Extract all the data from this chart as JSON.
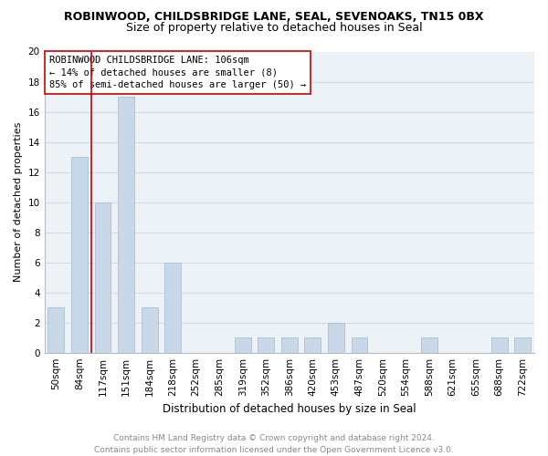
{
  "title": "ROBINWOOD, CHILDSBRIDGE LANE, SEAL, SEVENOAKS, TN15 0BX",
  "subtitle": "Size of property relative to detached houses in Seal",
  "xlabel": "Distribution of detached houses by size in Seal",
  "ylabel": "Number of detached properties",
  "categories": [
    "50sqm",
    "84sqm",
    "117sqm",
    "151sqm",
    "184sqm",
    "218sqm",
    "252sqm",
    "285sqm",
    "319sqm",
    "352sqm",
    "386sqm",
    "420sqm",
    "453sqm",
    "487sqm",
    "520sqm",
    "554sqm",
    "588sqm",
    "621sqm",
    "655sqm",
    "688sqm",
    "722sqm"
  ],
  "values": [
    3,
    13,
    10,
    17,
    3,
    6,
    0,
    0,
    1,
    1,
    1,
    1,
    2,
    1,
    0,
    0,
    1,
    0,
    0,
    1,
    1
  ],
  "bar_color": "#c8d8e8",
  "bar_edge_color": "#a8c0d0",
  "vline_color": "#cc0000",
  "vline_x_index": 1.5,
  "annotation_line1": "ROBINWOOD CHILDSBRIDGE LANE: 106sqm",
  "annotation_line2": "← 14% of detached houses are smaller (8)",
  "annotation_line3": "85% of semi-detached houses are larger (50) →",
  "annotation_box_facecolor": "#ffffff",
  "annotation_box_edgecolor": "#cc0000",
  "ylim": [
    0,
    20
  ],
  "yticks": [
    0,
    2,
    4,
    6,
    8,
    10,
    12,
    14,
    16,
    18,
    20
  ],
  "grid_color": "#d0dce8",
  "plot_bg_color": "#edf2f7",
  "fig_bg_color": "#ffffff",
  "title_fontsize": 9,
  "subtitle_fontsize": 9,
  "xlabel_fontsize": 8.5,
  "ylabel_fontsize": 8,
  "tick_fontsize": 7.5,
  "annotation_fontsize": 7.5,
  "footer_fontsize": 6.5,
  "footer_color": "#888888",
  "footer_text": "Contains HM Land Registry data © Crown copyright and database right 2024.\nContains public sector information licensed under the Open Government Licence v3.0."
}
